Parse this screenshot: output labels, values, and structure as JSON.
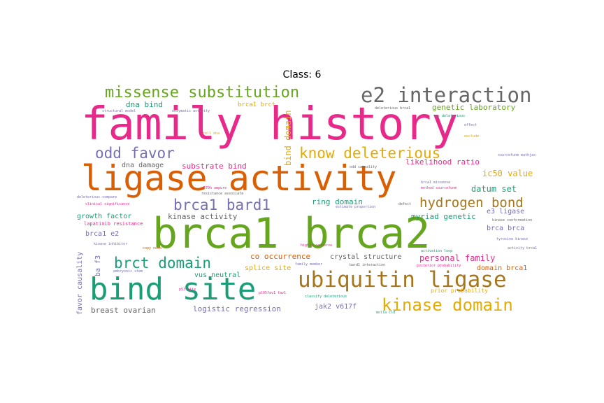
{
  "title": "Class: 6",
  "palette": {
    "pink": "#e7298a",
    "orange": "#d95f02",
    "green": "#66a61e",
    "teal": "#1b9e77",
    "purple": "#7570b3",
    "gold": "#e6ab02",
    "brown": "#a6761d",
    "gray": "#666666"
  },
  "words": {
    "family_history": "family history",
    "ligase_activity": "ligase activity",
    "brca1_brca2": "brca1 brca2",
    "bind_site": "bind site",
    "ubiquitin_ligase": "ubiquitin ligase",
    "e2_interaction": "e2 interaction",
    "missense_substitution": "missense substitution",
    "kinase_domain": "kinase domain",
    "know_deleterious": "know deleterious",
    "odd_favor": "odd favor",
    "brca1_bard1": "brca1 bard1",
    "brct_domain": "brct domain",
    "hydrogen_bond": "hydrogen bond",
    "genetic_laboratory": "genetic laboratory",
    "substrate_bind": "substrate bind",
    "likelihood_ratio": "likelihood ratio",
    "ic50_value": "ic50 value",
    "datum_set": "datum set",
    "dna_bind": "dna bind",
    "dna_damage": "dna damage",
    "bind_domain": "bind domain",
    "ring_domain": "ring domain",
    "growth_factor": "growth factor",
    "kinase_activity": "kinase activity",
    "myriad_genetic": "myriad genetic",
    "e3_ligase": "e3 ligase",
    "brca1_e2": "brca1 e2",
    "brca_brca": "brca brca",
    "co_occurrence": "co occurrence",
    "crystal_structure": "crystal structure",
    "personal_family": "personal family",
    "splice_site": "splice site",
    "domain_brca1": "domain brca1",
    "vus_neutral": "vus neutral",
    "favor_causality": "favor causality",
    "ba_f3": "ba f3",
    "breast_ovarian": "breast ovarian",
    "logistic_regression": "logistic regression",
    "jak2_v617f": "jak2 v617f",
    "brca1_brct": "brca1 brct",
    "lapatinib_resistance": "lapatinib resistance",
    "prior_probability": "prior probability"
  },
  "small_words": [
    "structural model",
    "enzymatic activity",
    "deleterious brca1",
    "vus deleterious",
    "c270h ampure",
    "resistance associate",
    "cell dna",
    "odd causality",
    "brca1 missense",
    "method sourcefunm",
    "deleterious compare",
    "clinical significance",
    "estimate proportion",
    "defect",
    "kinase inhibitor",
    "copy numb",
    "highly conserve",
    "embryonic stem",
    "family member",
    "bard1 interaction",
    "posterior probability",
    "activation loop",
    "tyrosine kinase",
    "activity brca1",
    "kinase conformation",
    "classify deleterious",
    "p53 site",
    "pl05fav1 fav1",
    "molla cld",
    "sourcefunm mathjax",
    "effect",
    "exclude"
  ]
}
